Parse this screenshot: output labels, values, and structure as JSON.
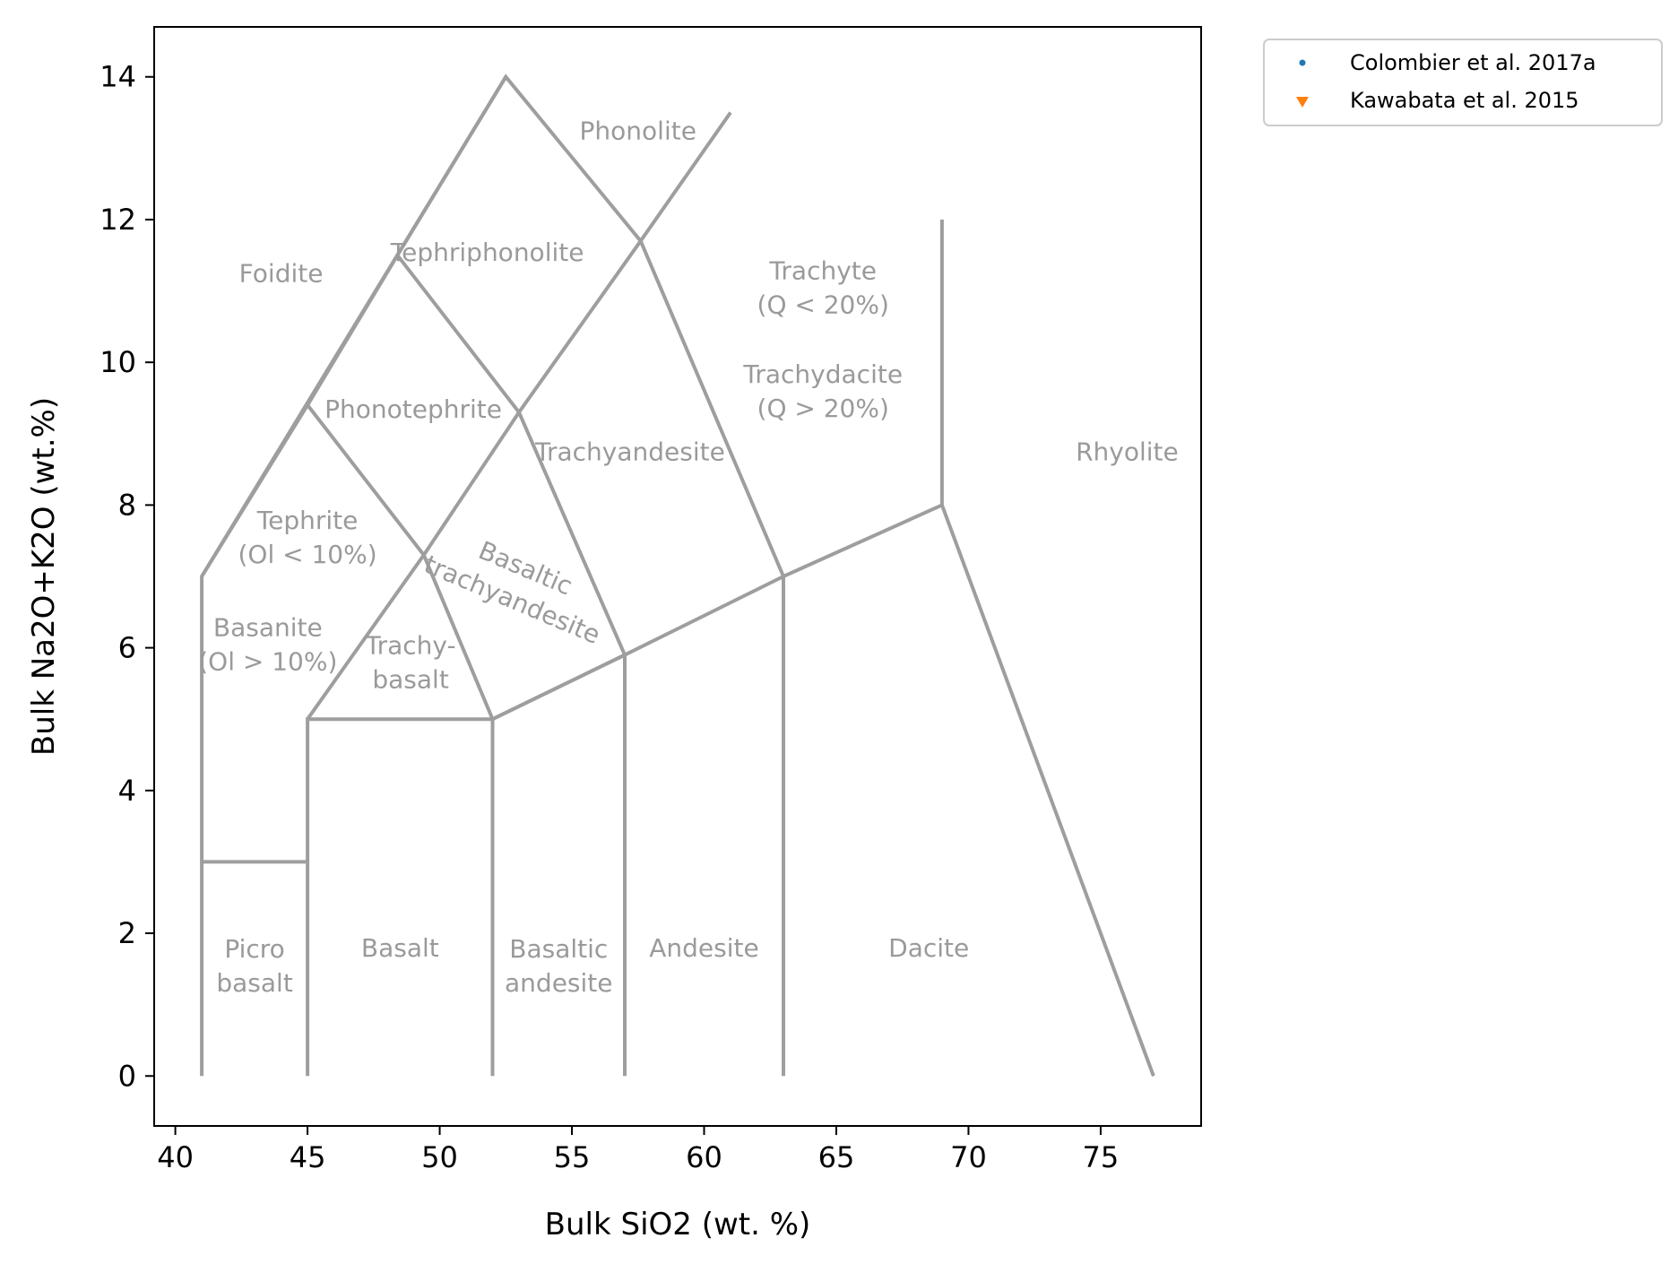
{
  "chart_data": {
    "type": "scatter",
    "title": "",
    "xlabel": "Bulk SiO2 (wt. %)",
    "ylabel": "Bulk Na2O+K2O (wt.%)",
    "xlim": [
      39.2,
      78.8
    ],
    "ylim": [
      -0.7,
      14.7
    ],
    "xticks": [
      40,
      45,
      50,
      55,
      60,
      65,
      70,
      75
    ],
    "yticks": [
      0,
      2,
      4,
      6,
      8,
      10,
      12,
      14
    ],
    "grid": false,
    "legend_position": "outside-top-right",
    "series": [
      {
        "name": "Colombier et al. 2017a",
        "marker": "circle",
        "color": "#1f77b4",
        "points": []
      },
      {
        "name": "Kawabata et al. 2015",
        "marker": "triangle-down",
        "color": "#ff7f0e",
        "points": []
      }
    ],
    "boundary_color": "#9e9e9e",
    "boundaries": [
      [
        [
          41,
          0
        ],
        [
          41,
          7
        ],
        [
          52.5,
          14
        ],
        [
          57.6,
          11.7
        ],
        [
          63,
          7
        ],
        [
          69,
          8
        ],
        [
          77,
          0
        ]
      ],
      [
        [
          41,
          3
        ],
        [
          45,
          3
        ]
      ],
      [
        [
          45,
          0
        ],
        [
          45,
          5
        ],
        [
          52,
          5
        ],
        [
          57,
          5.9
        ],
        [
          63,
          7
        ]
      ],
      [
        [
          45,
          5
        ],
        [
          49.4,
          7.3
        ],
        [
          53,
          9.3
        ],
        [
          57.6,
          11.7
        ],
        [
          61,
          13.5
        ]
      ],
      [
        [
          52,
          0
        ],
        [
          52,
          5
        ],
        [
          57,
          5.9
        ]
      ],
      [
        [
          57,
          0
        ],
        [
          57,
          5.9
        ]
      ],
      [
        [
          63,
          0
        ],
        [
          63,
          7
        ]
      ],
      [
        [
          69,
          8
        ],
        [
          69,
          12
        ]
      ],
      [
        [
          41,
          7
        ],
        [
          45,
          9.4
        ],
        [
          48.4,
          11.5
        ],
        [
          52.5,
          14
        ]
      ],
      [
        [
          45,
          9.4
        ],
        [
          49.4,
          7.3
        ],
        [
          52,
          5
        ]
      ],
      [
        [
          48.4,
          11.5
        ],
        [
          53,
          9.3
        ],
        [
          57,
          5.9
        ]
      ]
    ],
    "region_labels": [
      {
        "name": "Foidite",
        "lines": [
          "Foidite"
        ],
        "x": 44,
        "y": 11.25
      },
      {
        "name": "Phonolite",
        "lines": [
          "Phonolite"
        ],
        "x": 57.5,
        "y": 13.25
      },
      {
        "name": "Tephriphonolite",
        "lines": [
          "Tephriphonolite"
        ],
        "x": 51.8,
        "y": 11.55
      },
      {
        "name": "Trachyte",
        "lines": [
          "Trachyte",
          "(Q < 20%)"
        ],
        "x": 64.5,
        "y": 11.05
      },
      {
        "name": "Trachydacite",
        "lines": [
          "Trachydacite",
          "(Q > 20%)"
        ],
        "x": 64.5,
        "y": 9.6
      },
      {
        "name": "Phonotephrite",
        "lines": [
          "Phonotephrite"
        ],
        "x": 49,
        "y": 9.35
      },
      {
        "name": "Trachyandesite",
        "lines": [
          "Trachyandesite"
        ],
        "x": 57.2,
        "y": 8.75
      },
      {
        "name": "Rhyolite",
        "lines": [
          "Rhyolite"
        ],
        "x": 76,
        "y": 8.75
      },
      {
        "name": "Tephrite",
        "lines": [
          "Tephrite",
          "(Ol < 10%)"
        ],
        "x": 45,
        "y": 7.55
      },
      {
        "name": "Basaltic trachyandesite",
        "lines": [
          "Basaltic",
          "trachyandesite"
        ],
        "x": 53,
        "y": 6.9,
        "rotation": 23
      },
      {
        "name": "Basanite",
        "lines": [
          "Basanite",
          "(Ol > 10%)"
        ],
        "x": 43.5,
        "y": 6.05
      },
      {
        "name": "Trachybasalt",
        "lines": [
          "Trachy-",
          "basalt"
        ],
        "x": 48.9,
        "y": 5.8
      },
      {
        "name": "Picrobasalt",
        "lines": [
          "Picro",
          "basalt"
        ],
        "x": 43,
        "y": 1.55
      },
      {
        "name": "Basalt",
        "lines": [
          "Basalt"
        ],
        "x": 48.5,
        "y": 1.8
      },
      {
        "name": "Basaltic andesite",
        "lines": [
          "Basaltic",
          "andesite"
        ],
        "x": 54.5,
        "y": 1.55
      },
      {
        "name": "Andesite",
        "lines": [
          "Andesite"
        ],
        "x": 60,
        "y": 1.8
      },
      {
        "name": "Dacite",
        "lines": [
          "Dacite"
        ],
        "x": 68.5,
        "y": 1.8
      }
    ]
  }
}
